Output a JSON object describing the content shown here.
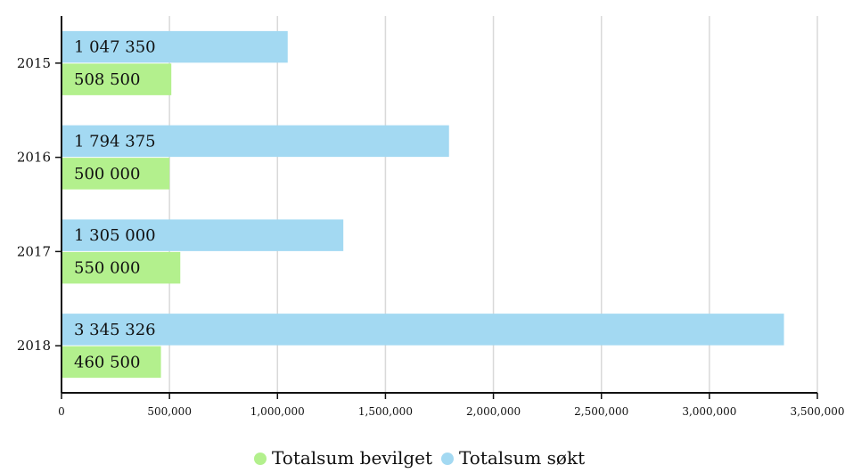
{
  "chart_data": {
    "type": "bar",
    "orientation": "horizontal",
    "categories": [
      "2015",
      "2016",
      "2017",
      "2018"
    ],
    "series": [
      {
        "name": "Totalsum søkt",
        "color": "#a3d9f2",
        "values": [
          1047350,
          1794375,
          1305000,
          3345326
        ],
        "labels": [
          "1 047 350",
          "1 794 375",
          "1 305 000",
          "3 345 326"
        ]
      },
      {
        "name": "Totalsum bevilget",
        "color": "#b3f08d",
        "values": [
          508500,
          500000,
          550000,
          460500
        ],
        "labels": [
          "508 500",
          "500 000",
          "550 000",
          "460 500"
        ]
      }
    ],
    "xlim": [
      0,
      3500000
    ],
    "xticks": [
      0,
      500000,
      1000000,
      1500000,
      2000000,
      2500000,
      3000000,
      3500000
    ],
    "xtick_labels": [
      "0",
      "500,000",
      "1,000,000",
      "1,500,000",
      "2,000,000",
      "2,500,000",
      "3,000,000",
      "3,500,000"
    ],
    "grid": true,
    "legend": {
      "position": "bottom",
      "items": [
        {
          "name": "Totalsum bevilget",
          "color": "#b3f08d"
        },
        {
          "name": "Totalsum søkt",
          "color": "#a3d9f2"
        }
      ]
    },
    "title": "",
    "xlabel": "",
    "ylabel": ""
  }
}
